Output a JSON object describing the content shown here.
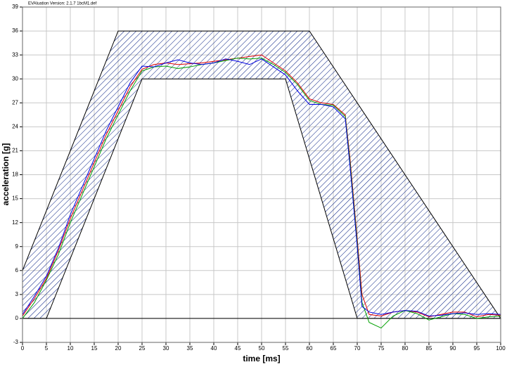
{
  "chart_data": {
    "type": "line",
    "title": "EVAluation Version: 2.1.7 1bcM1.def",
    "x_label": "time [ms]",
    "y_label": "acceleration [g]",
    "xlim": [
      0,
      100
    ],
    "ylim": [
      -3,
      39
    ],
    "xticks": [
      0,
      5,
      10,
      15,
      20,
      25,
      30,
      35,
      40,
      45,
      50,
      55,
      60,
      65,
      70,
      75,
      80,
      85,
      90,
      95,
      100
    ],
    "yticks": [
      -3,
      0,
      3,
      6,
      9,
      12,
      15,
      18,
      21,
      24,
      27,
      30,
      33,
      36,
      39
    ],
    "grid": true,
    "corridor": {
      "x": [
        0,
        0,
        20,
        60,
        100,
        70,
        55,
        25,
        5
      ],
      "y": [
        0,
        6,
        36,
        36,
        0,
        0,
        30,
        30,
        0
      ]
    },
    "x": [
      0,
      2.5,
      5,
      7.5,
      10,
      12.5,
      15,
      17.5,
      20,
      22.5,
      25,
      27.5,
      30,
      32.5,
      35,
      37.5,
      40,
      42.5,
      45,
      47.5,
      50,
      52.5,
      55,
      57.5,
      60,
      62.5,
      65,
      67.5,
      68.5,
      70,
      71,
      72.5,
      75,
      77.5,
      80,
      82.5,
      85,
      87.5,
      90,
      92.5,
      95,
      97.5,
      100
    ],
    "series": [
      {
        "name": "red",
        "color": "#e00000",
        "values": [
          0.3,
          2.5,
          5,
          8.5,
          12.5,
          16,
          19.5,
          23,
          26,
          29,
          31.2,
          31.8,
          32,
          31.8,
          31.9,
          32,
          32.2,
          32.4,
          32.6,
          32.8,
          33,
          32,
          31,
          29.5,
          27.5,
          27,
          26.8,
          25.5,
          20,
          10,
          3,
          0.5,
          0.3,
          0.8,
          1,
          0.8,
          0.2,
          0.5,
          0.8,
          0.8,
          0.2,
          0.5,
          0.4
        ]
      },
      {
        "name": "green",
        "color": "#00a000",
        "values": [
          0,
          2,
          4.8,
          8,
          12,
          15.5,
          19,
          22.5,
          25.5,
          28.5,
          31,
          31.5,
          31.6,
          31.3,
          31.5,
          31.8,
          32,
          32.3,
          32.6,
          32.5,
          32.6,
          31.8,
          30.8,
          29.3,
          27.3,
          26.8,
          26.7,
          25.3,
          19.5,
          9.5,
          2,
          -0.5,
          -1.2,
          0.3,
          1,
          0.6,
          -0.2,
          0.2,
          0.6,
          0.5,
          0,
          0.2,
          0.3
        ]
      },
      {
        "name": "blue",
        "color": "#0000e0",
        "values": [
          0.5,
          2.8,
          5.3,
          8.8,
          13,
          16.5,
          20,
          23.5,
          26.5,
          29.5,
          31.6,
          31.5,
          32,
          32.4,
          32,
          31.8,
          32,
          32.5,
          32.2,
          31.8,
          32.5,
          31.5,
          30.5,
          28.5,
          26.8,
          26.8,
          26.5,
          25,
          19,
          9,
          1.5,
          0.8,
          0.5,
          0.8,
          1,
          0.9,
          0.3,
          0.4,
          0.6,
          0.7,
          0.5,
          0.6,
          0.5
        ]
      }
    ]
  }
}
